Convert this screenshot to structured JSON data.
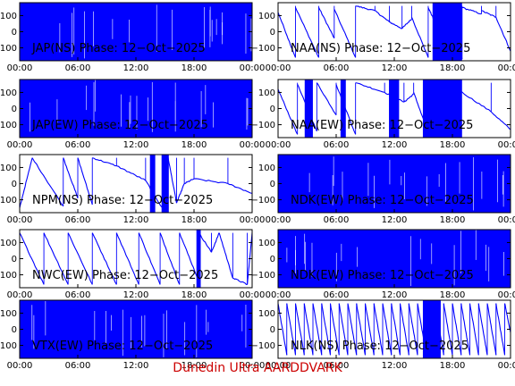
{
  "footer": "Dunedin Ultra AARDDVARK",
  "colors": {
    "trace": "#0000ff",
    "frame": "#000000",
    "text": "#000000",
    "footer": "#cc0000"
  },
  "chart_data": [
    {
      "type": "line",
      "title": "JAP(NS) Phase: 12-Oct-2025",
      "x_ticks": [
        "00:00",
        "06:00",
        "12:00",
        "18:00",
        "00:00"
      ],
      "y_ticks": [
        100,
        0,
        -100
      ],
      "ylim": [
        -180,
        180
      ],
      "xlim_hours": [
        0,
        24
      ],
      "trace_pattern": "saturated",
      "segments": []
    },
    {
      "type": "line",
      "title": "NAA(NS) Phase: 12-Oct-2025",
      "x_ticks": [
        "00:00",
        "06:00",
        "12:00",
        "18:00",
        "00:00"
      ],
      "y_ticks": [
        100,
        0,
        -100
      ],
      "ylim": [
        -180,
        180
      ],
      "xlim_hours": [
        0,
        24
      ],
      "trace_pattern": "mixed",
      "segments": [
        [
          0.0,
          120,
          1.8,
          -160
        ],
        [
          1.8,
          150,
          4.2,
          -160
        ],
        [
          4.2,
          150,
          5.8,
          -40
        ],
        [
          5.8,
          140,
          8.0,
          -160
        ],
        [
          8.0,
          160,
          10.0,
          130
        ],
        [
          10.0,
          130,
          11.5,
          60
        ],
        [
          11.5,
          60,
          12.8,
          20
        ],
        [
          12.8,
          20,
          13.8,
          80
        ],
        [
          13.8,
          90,
          15.5,
          -160
        ],
        [
          15.5,
          150,
          16.2,
          60
        ],
        [
          16.2,
          150,
          16.8,
          -170
        ],
        [
          16.8,
          170,
          17.6,
          -170
        ],
        [
          17.6,
          170,
          18.2,
          -170
        ],
        [
          18.2,
          170,
          19.0,
          -170
        ],
        [
          19.0,
          150,
          21.0,
          110
        ],
        [
          21.0,
          130,
          22.5,
          90
        ],
        [
          22.5,
          90,
          24.0,
          -120
        ]
      ],
      "noise_bands": [
        [
          16.0,
          19.0
        ]
      ]
    },
    {
      "type": "line",
      "title": "JAP(EW) Phase: 12-Oct-2025",
      "x_ticks": [
        "00:00",
        "06:00",
        "12:00",
        "18:00",
        "00:00"
      ],
      "y_ticks": [
        100,
        0,
        -100
      ],
      "ylim": [
        -180,
        180
      ],
      "xlim_hours": [
        0,
        24
      ],
      "trace_pattern": "saturated",
      "segments": []
    },
    {
      "type": "line",
      "title": "NAA(EW) Phase: 12-Oct-2025",
      "x_ticks": [
        "00:00",
        "06:00",
        "12:00",
        "18:00",
        "00:00"
      ],
      "y_ticks": [
        100,
        0,
        -100
      ],
      "ylim": [
        -180,
        180
      ],
      "xlim_hours": [
        0,
        24
      ],
      "trace_pattern": "mixed",
      "segments": [
        [
          0.0,
          120,
          2.0,
          -160
        ],
        [
          2.0,
          150,
          4.0,
          -140
        ],
        [
          4.0,
          160,
          6.0,
          -40
        ],
        [
          6.0,
          150,
          8.0,
          -160
        ],
        [
          8.0,
          160,
          11.0,
          100
        ],
        [
          11.0,
          100,
          13.0,
          40
        ],
        [
          13.0,
          40,
          14.0,
          90
        ],
        [
          14.0,
          100,
          15.5,
          -150
        ],
        [
          15.5,
          160,
          18.5,
          -160
        ],
        [
          18.5,
          120,
          22.0,
          -20
        ],
        [
          22.0,
          -20,
          24.0,
          -130
        ]
      ],
      "noise_bands": [
        [
          2.8,
          3.6
        ],
        [
          6.5,
          7.0
        ],
        [
          11.5,
          12.5
        ],
        [
          15.0,
          19.0
        ]
      ]
    },
    {
      "type": "line",
      "title": "NPM(NS) Phase: 12-Oct-2025",
      "x_ticks": [
        "00:00",
        "06:00",
        "12:00",
        "18:00",
        "00:00"
      ],
      "y_ticks": [
        100,
        0,
        -100
      ],
      "ylim": [
        -180,
        180
      ],
      "xlim_hours": [
        0,
        24
      ],
      "trace_pattern": "mixed",
      "segments": [
        [
          0.0,
          -150,
          1.3,
          160
        ],
        [
          1.3,
          160,
          4.5,
          -140
        ],
        [
          4.5,
          160,
          6.0,
          -90
        ],
        [
          6.0,
          160,
          7.5,
          -130
        ],
        [
          7.5,
          160,
          10.0,
          110
        ],
        [
          10.0,
          110,
          13.0,
          20
        ],
        [
          13.0,
          20,
          14.8,
          -160
        ],
        [
          14.8,
          160,
          15.3,
          -170
        ],
        [
          15.3,
          170,
          16.2,
          -120
        ],
        [
          16.2,
          -120,
          17.0,
          0
        ],
        [
          17.0,
          0,
          18.0,
          30
        ],
        [
          18.0,
          30,
          21.5,
          0
        ],
        [
          21.5,
          0,
          24.0,
          -60
        ]
      ],
      "noise_bands": [
        [
          13.5,
          14.0
        ],
        [
          14.7,
          15.4
        ]
      ]
    },
    {
      "type": "line",
      "title": "NDK(EW) Phase: 12-Oct-2025",
      "x_ticks": [
        "00:00",
        "06:00",
        "12:00",
        "18:00",
        "00:00"
      ],
      "y_ticks": [
        100,
        0,
        -100
      ],
      "ylim": [
        -180,
        180
      ],
      "xlim_hours": [
        0,
        24
      ],
      "trace_pattern": "saturated",
      "segments": []
    },
    {
      "type": "line",
      "title": "NWC(EW) Phase: 12-Oct-2025",
      "x_ticks": [
        "00:00",
        "06:00",
        "12:00",
        "18:00",
        "00:00"
      ],
      "y_ticks": [
        100,
        0,
        -100
      ],
      "ylim": [
        -180,
        180
      ],
      "xlim_hours": [
        0,
        24
      ],
      "trace_pattern": "sawtooth",
      "segments": [
        [
          0.0,
          160,
          2.5,
          -160
        ],
        [
          2.5,
          160,
          5.0,
          -160
        ],
        [
          5.0,
          160,
          7.5,
          -160
        ],
        [
          7.5,
          160,
          10.0,
          -160
        ],
        [
          10.0,
          160,
          12.3,
          -160
        ],
        [
          12.3,
          160,
          14.5,
          -160
        ],
        [
          14.5,
          160,
          16.5,
          -160
        ],
        [
          16.5,
          160,
          18.5,
          -140
        ],
        [
          18.5,
          160,
          19.8,
          40
        ],
        [
          19.8,
          40,
          20.6,
          160
        ],
        [
          20.6,
          160,
          22.0,
          -120
        ],
        [
          22.0,
          -120,
          23.5,
          -160
        ],
        [
          23.5,
          -160,
          24.0,
          160
        ]
      ],
      "noise_bands": [
        [
          18.3,
          18.7
        ]
      ]
    },
    {
      "type": "line",
      "title": "NDK(EW) Phase: 12-Oct-2025",
      "x_ticks": [
        "00:00",
        "06:00",
        "12:00",
        "18:00",
        "00:00"
      ],
      "y_ticks": [
        100,
        0,
        -100
      ],
      "ylim": [
        -180,
        180
      ],
      "xlim_hours": [
        0,
        24
      ],
      "trace_pattern": "saturated",
      "segments": []
    },
    {
      "type": "line",
      "title": "VTX(EW) Phase: 12-Oct-2025",
      "x_ticks": [
        "00:00",
        "06:00",
        "12:00",
        "18:00",
        "00:00"
      ],
      "y_ticks": [
        100,
        0,
        -100
      ],
      "ylim": [
        -180,
        180
      ],
      "xlim_hours": [
        0,
        24
      ],
      "trace_pattern": "saturated",
      "segments": []
    },
    {
      "type": "line",
      "title": "NLK(NS) Phase: 12-Oct-2025",
      "x_ticks": [
        "00:00",
        "06:00",
        "12:00",
        "18:00",
        "00:00"
      ],
      "y_ticks": [
        100,
        0,
        -100
      ],
      "ylim": [
        -180,
        180
      ],
      "xlim_hours": [
        0,
        24
      ],
      "trace_pattern": "sawtooth",
      "segments": [
        [
          0.0,
          160,
          0.9,
          -160
        ],
        [
          0.9,
          160,
          1.8,
          -160
        ],
        [
          1.8,
          160,
          2.7,
          -160
        ],
        [
          2.7,
          160,
          3.6,
          -160
        ],
        [
          3.6,
          160,
          4.5,
          -160
        ],
        [
          4.5,
          160,
          5.4,
          -160
        ],
        [
          5.4,
          160,
          6.3,
          -160
        ],
        [
          6.3,
          160,
          7.2,
          -160
        ],
        [
          7.2,
          160,
          8.1,
          -160
        ],
        [
          8.1,
          160,
          9.0,
          -160
        ],
        [
          9.0,
          160,
          9.9,
          -160
        ],
        [
          9.9,
          160,
          10.8,
          -160
        ],
        [
          10.8,
          160,
          11.7,
          -160
        ],
        [
          11.7,
          160,
          12.6,
          -160
        ],
        [
          12.6,
          160,
          13.5,
          -160
        ],
        [
          13.5,
          160,
          14.4,
          -160
        ],
        [
          14.4,
          160,
          15.3,
          -160
        ],
        [
          15.3,
          160,
          16.2,
          -160
        ],
        [
          16.2,
          160,
          17.1,
          -160
        ],
        [
          17.1,
          160,
          18.0,
          -160
        ],
        [
          18.0,
          160,
          18.9,
          -160
        ],
        [
          18.9,
          160,
          19.8,
          -160
        ],
        [
          19.8,
          160,
          20.7,
          -160
        ],
        [
          20.7,
          160,
          21.6,
          -160
        ],
        [
          21.6,
          160,
          22.5,
          -160
        ],
        [
          22.5,
          160,
          23.4,
          -160
        ],
        [
          23.4,
          160,
          24.0,
          -20
        ]
      ],
      "noise_bands": [
        [
          15.0,
          16.8
        ]
      ]
    }
  ]
}
